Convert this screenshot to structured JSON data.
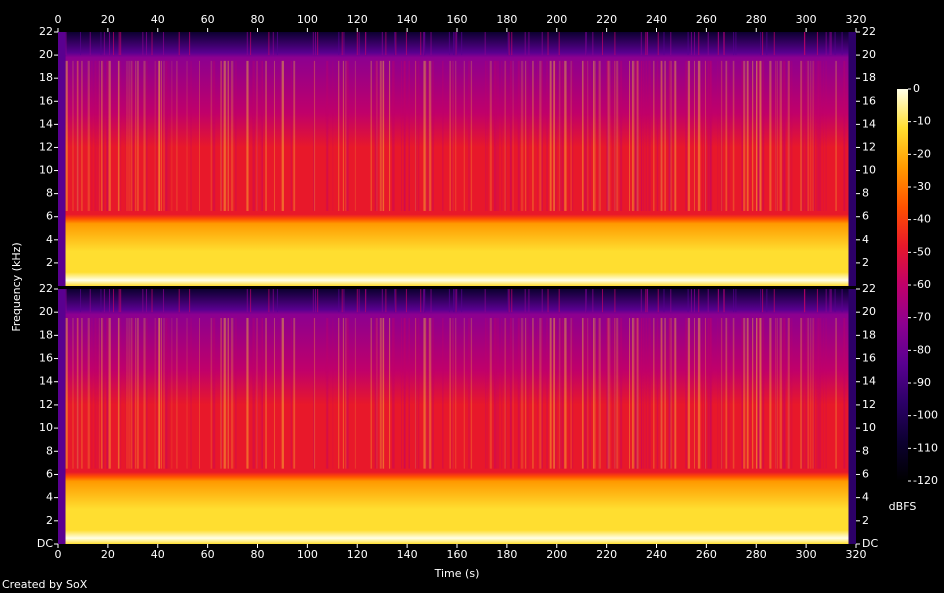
{
  "footer": "Created by SoX",
  "chart_data": [
    {
      "type": "spectrogram",
      "y_label": "Frequency (kHz)",
      "xlim": [
        0,
        320
      ],
      "xticks": [
        0,
        20,
        40,
        60,
        80,
        100,
        120,
        140,
        160,
        180,
        200,
        220,
        240,
        260,
        280,
        300,
        320
      ],
      "ylim": [
        0,
        22
      ],
      "yticks": [
        2,
        4,
        6,
        8,
        10,
        12,
        14,
        16,
        18,
        20,
        22
      ]
    },
    {
      "type": "spectrogram",
      "x_label": "Time (s)",
      "xlim": [
        0,
        320
      ],
      "xticks": [
        0,
        20,
        40,
        60,
        80,
        100,
        120,
        140,
        160,
        180,
        200,
        220,
        240,
        260,
        280,
        300,
        320
      ],
      "ylim": [
        0,
        22
      ],
      "yticks": [
        {
          "value": 0,
          "label": "DC"
        },
        2,
        4,
        6,
        8,
        10,
        12,
        14,
        16,
        18,
        20,
        22
      ]
    },
    {
      "type": "colorbar",
      "y_label": "dBFS",
      "ylim": [
        -120,
        0
      ],
      "yticks": [
        0,
        -10,
        -20,
        -30,
        -40,
        -50,
        -60,
        -70,
        -80,
        -90,
        -100,
        -110,
        -120
      ],
      "colormap": [
        "#000000",
        "#0c0030",
        "#2c0068",
        "#5a0090",
        "#8c0090",
        "#c0006a",
        "#e8182a",
        "#ff5200",
        "#ff9a00",
        "#ffde30",
        "#ffffe8"
      ]
    }
  ]
}
